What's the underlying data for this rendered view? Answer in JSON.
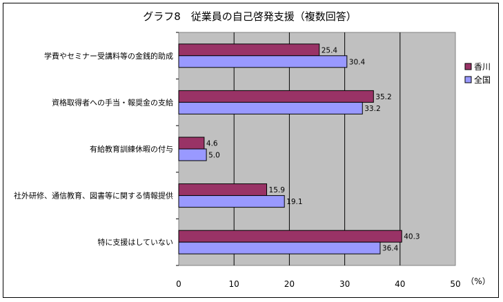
{
  "chart_data": {
    "type": "bar",
    "orientation": "horizontal",
    "title": "グラフ8　従業員の自己啓発支援（複数回答）",
    "categories": [
      "学費やセミナー受講料等の金銭的助成",
      "資格取得者への手当・報奨金の支給",
      "有給教育訓練休暇の付与",
      "社外研修、通信教育、図書等に関する情報提供",
      "特に支援はしていない"
    ],
    "series": [
      {
        "name": "香川",
        "values": [
          25.4,
          35.2,
          4.6,
          15.9,
          40.3
        ],
        "color": "#993366"
      },
      {
        "name": "全国",
        "values": [
          30.4,
          33.2,
          5.0,
          19.1,
          36.4
        ],
        "color": "#9999ff"
      }
    ],
    "xlim": [
      0,
      50
    ],
    "xticks": [
      "0",
      "10",
      "20",
      "30",
      "40",
      "50"
    ],
    "unit": "（%）",
    "legend_position": "right",
    "grid": true,
    "plot_background": "#c0c0c0"
  }
}
